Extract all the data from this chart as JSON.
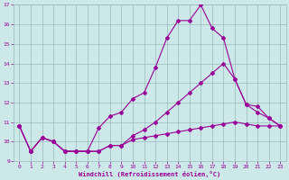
{
  "xlabel": "Windchill (Refroidissement éolien,°C)",
  "xlim": [
    -0.5,
    23.5
  ],
  "ylim": [
    9,
    17
  ],
  "xticks": [
    0,
    1,
    2,
    3,
    4,
    5,
    6,
    7,
    8,
    9,
    10,
    11,
    12,
    13,
    14,
    15,
    16,
    17,
    18,
    19,
    20,
    21,
    22,
    23
  ],
  "yticks": [
    9,
    10,
    11,
    12,
    13,
    14,
    15,
    16,
    17
  ],
  "background_color": "#cce8e8",
  "grid_color": "#99bbbb",
  "line_color": "#990099",
  "line1_x": [
    0,
    1,
    2,
    3,
    4,
    5,
    6,
    7,
    8,
    9,
    10,
    11,
    12,
    13,
    14,
    15,
    16,
    17,
    18,
    19,
    20,
    21,
    22,
    23
  ],
  "line1_y": [
    10.8,
    9.5,
    10.2,
    10.0,
    9.5,
    9.5,
    9.5,
    10.7,
    11.3,
    11.5,
    12.2,
    12.5,
    13.8,
    15.3,
    16.2,
    16.2,
    17.0,
    15.8,
    15.3,
    13.2,
    11.9,
    11.8,
    11.2,
    10.8
  ],
  "line2_x": [
    0,
    1,
    2,
    3,
    4,
    5,
    6,
    7,
    8,
    9,
    10,
    11,
    12,
    13,
    14,
    15,
    16,
    17,
    18,
    19,
    20,
    21,
    22,
    23
  ],
  "line2_y": [
    10.8,
    9.5,
    10.2,
    10.0,
    9.5,
    9.5,
    9.5,
    9.5,
    9.8,
    9.8,
    10.3,
    10.6,
    11.0,
    11.5,
    12.0,
    12.5,
    13.0,
    13.5,
    14.0,
    13.2,
    11.9,
    11.5,
    11.2,
    10.8
  ],
  "line3_x": [
    0,
    1,
    2,
    3,
    4,
    5,
    6,
    7,
    8,
    9,
    10,
    11,
    12,
    13,
    14,
    15,
    16,
    17,
    18,
    19,
    20,
    21,
    22,
    23
  ],
  "line3_y": [
    10.8,
    9.5,
    10.2,
    10.0,
    9.5,
    9.5,
    9.5,
    9.5,
    9.8,
    9.8,
    10.1,
    10.2,
    10.3,
    10.4,
    10.5,
    10.6,
    10.7,
    10.8,
    10.9,
    11.0,
    10.9,
    10.8,
    10.8,
    10.8
  ]
}
